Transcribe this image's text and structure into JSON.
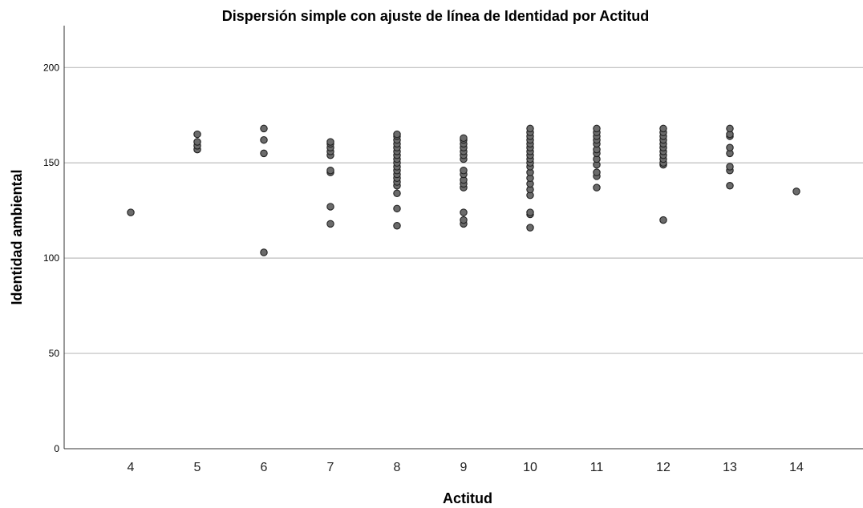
{
  "chart_data": {
    "type": "scatter",
    "title": "Dispersión simple con ajuste de línea de Identidad por Actitud",
    "xlabel": "Actitud",
    "ylabel": "Identidad ambiental",
    "x_ticks": [
      "4",
      "5",
      "6",
      "7",
      "8",
      "9",
      "10",
      "11",
      "12",
      "13",
      "14"
    ],
    "y_ticks": [
      "0",
      "50",
      "100",
      "150",
      "200"
    ],
    "xlim": [
      3,
      15
    ],
    "ylim": [
      0,
      222
    ],
    "grid": "horizontal",
    "point_color": "#6b6b6b",
    "points": [
      {
        "x": 4,
        "y": 124
      },
      {
        "x": 5,
        "y": 157
      },
      {
        "x": 5,
        "y": 159
      },
      {
        "x": 5,
        "y": 161
      },
      {
        "x": 5,
        "y": 165
      },
      {
        "x": 6,
        "y": 103
      },
      {
        "x": 6,
        "y": 155
      },
      {
        "x": 6,
        "y": 162
      },
      {
        "x": 6,
        "y": 168
      },
      {
        "x": 7,
        "y": 118
      },
      {
        "x": 7,
        "y": 127
      },
      {
        "x": 7,
        "y": 145
      },
      {
        "x": 7,
        "y": 146
      },
      {
        "x": 7,
        "y": 154
      },
      {
        "x": 7,
        "y": 156
      },
      {
        "x": 7,
        "y": 158
      },
      {
        "x": 7,
        "y": 160
      },
      {
        "x": 7,
        "y": 161
      },
      {
        "x": 8,
        "y": 117
      },
      {
        "x": 8,
        "y": 126
      },
      {
        "x": 8,
        "y": 134
      },
      {
        "x": 8,
        "y": 138
      },
      {
        "x": 8,
        "y": 140
      },
      {
        "x": 8,
        "y": 142
      },
      {
        "x": 8,
        "y": 144
      },
      {
        "x": 8,
        "y": 146
      },
      {
        "x": 8,
        "y": 148
      },
      {
        "x": 8,
        "y": 150
      },
      {
        "x": 8,
        "y": 152
      },
      {
        "x": 8,
        "y": 154
      },
      {
        "x": 8,
        "y": 156
      },
      {
        "x": 8,
        "y": 158
      },
      {
        "x": 8,
        "y": 160
      },
      {
        "x": 8,
        "y": 162
      },
      {
        "x": 8,
        "y": 164
      },
      {
        "x": 8,
        "y": 165
      },
      {
        "x": 9,
        "y": 118
      },
      {
        "x": 9,
        "y": 120
      },
      {
        "x": 9,
        "y": 124
      },
      {
        "x": 9,
        "y": 137
      },
      {
        "x": 9,
        "y": 139
      },
      {
        "x": 9,
        "y": 141
      },
      {
        "x": 9,
        "y": 144
      },
      {
        "x": 9,
        "y": 146
      },
      {
        "x": 9,
        "y": 152
      },
      {
        "x": 9,
        "y": 154
      },
      {
        "x": 9,
        "y": 156
      },
      {
        "x": 9,
        "y": 158
      },
      {
        "x": 9,
        "y": 160
      },
      {
        "x": 9,
        "y": 162
      },
      {
        "x": 9,
        "y": 163
      },
      {
        "x": 10,
        "y": 116
      },
      {
        "x": 10,
        "y": 123
      },
      {
        "x": 10,
        "y": 124
      },
      {
        "x": 10,
        "y": 133
      },
      {
        "x": 10,
        "y": 136
      },
      {
        "x": 10,
        "y": 139
      },
      {
        "x": 10,
        "y": 142
      },
      {
        "x": 10,
        "y": 145
      },
      {
        "x": 10,
        "y": 148
      },
      {
        "x": 10,
        "y": 150
      },
      {
        "x": 10,
        "y": 152
      },
      {
        "x": 10,
        "y": 154
      },
      {
        "x": 10,
        "y": 156
      },
      {
        "x": 10,
        "y": 158
      },
      {
        "x": 10,
        "y": 160
      },
      {
        "x": 10,
        "y": 162
      },
      {
        "x": 10,
        "y": 164
      },
      {
        "x": 10,
        "y": 166
      },
      {
        "x": 10,
        "y": 168
      },
      {
        "x": 11,
        "y": 137
      },
      {
        "x": 11,
        "y": 143
      },
      {
        "x": 11,
        "y": 145
      },
      {
        "x": 11,
        "y": 149
      },
      {
        "x": 11,
        "y": 152
      },
      {
        "x": 11,
        "y": 155
      },
      {
        "x": 11,
        "y": 157
      },
      {
        "x": 11,
        "y": 160
      },
      {
        "x": 11,
        "y": 162
      },
      {
        "x": 11,
        "y": 164
      },
      {
        "x": 11,
        "y": 166
      },
      {
        "x": 11,
        "y": 168
      },
      {
        "x": 12,
        "y": 120
      },
      {
        "x": 12,
        "y": 149
      },
      {
        "x": 12,
        "y": 150
      },
      {
        "x": 12,
        "y": 152
      },
      {
        "x": 12,
        "y": 154
      },
      {
        "x": 12,
        "y": 156
      },
      {
        "x": 12,
        "y": 158
      },
      {
        "x": 12,
        "y": 160
      },
      {
        "x": 12,
        "y": 162
      },
      {
        "x": 12,
        "y": 164
      },
      {
        "x": 12,
        "y": 166
      },
      {
        "x": 12,
        "y": 168
      },
      {
        "x": 13,
        "y": 138
      },
      {
        "x": 13,
        "y": 146
      },
      {
        "x": 13,
        "y": 148
      },
      {
        "x": 13,
        "y": 155
      },
      {
        "x": 13,
        "y": 158
      },
      {
        "x": 13,
        "y": 164
      },
      {
        "x": 13,
        "y": 165
      },
      {
        "x": 13,
        "y": 168
      },
      {
        "x": 14,
        "y": 135
      }
    ]
  }
}
